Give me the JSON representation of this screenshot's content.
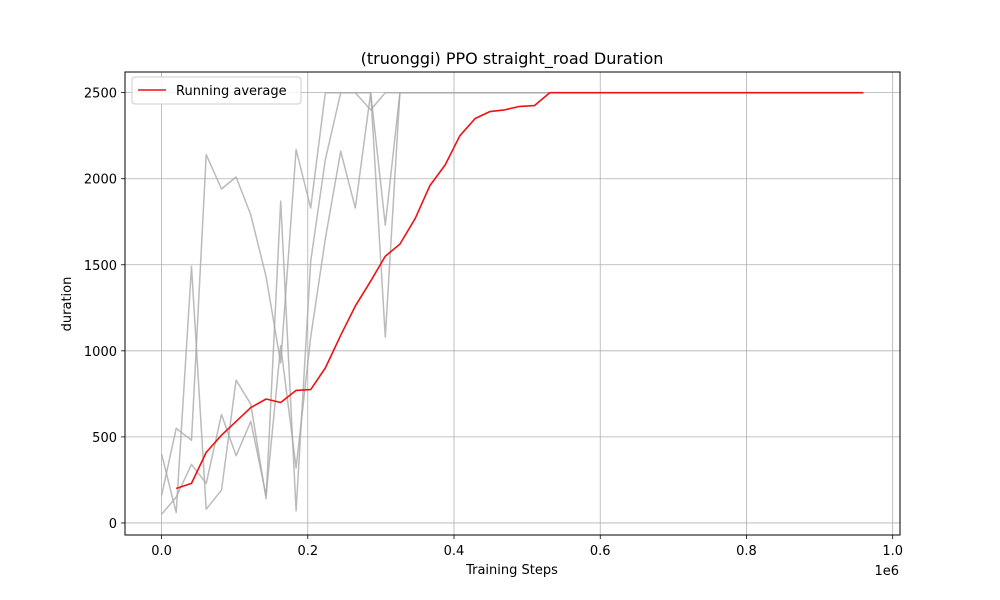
{
  "chart_data": {
    "type": "line",
    "title": "(truonggi) PPO straight_road Duration",
    "xlabel": "Training Steps",
    "ylabel": "duration",
    "x_offset_label": "1e6",
    "xlim": [
      -0.05,
      1.01
    ],
    "ylim": [
      -70,
      2620
    ],
    "x_ticks": [
      0.0,
      0.2,
      0.4,
      0.6,
      0.8,
      1.0
    ],
    "x_tick_labels": [
      "0.0",
      "0.2",
      "0.4",
      "0.6",
      "0.8",
      "1.0"
    ],
    "y_ticks": [
      0,
      500,
      1000,
      1500,
      2000,
      2500
    ],
    "y_tick_labels": [
      "0",
      "500",
      "1000",
      "1500",
      "2000",
      "2500"
    ],
    "grid": true,
    "legend": {
      "position": "top-left",
      "entries": [
        "Running average"
      ]
    },
    "colors": {
      "raw": "#aaaaaa",
      "average": "#ee1111"
    },
    "series": [
      {
        "x": [
          0.0,
          0.02,
          0.041,
          0.061,
          0.082,
          0.102,
          0.122,
          0.143,
          0.163,
          0.184,
          0.204,
          0.224,
          0.245,
          0.265,
          0.286,
          0.306,
          0.326,
          0.96
        ],
        "values": [
          160,
          550,
          480,
          2140,
          1940,
          2010,
          1790,
          1430,
          930,
          2170,
          1830,
          2500,
          2500,
          2500,
          2500,
          1080,
          2500,
          2500
        ]
      },
      {
        "x": [
          0.0,
          0.02,
          0.041,
          0.061,
          0.082,
          0.102,
          0.122,
          0.143,
          0.163,
          0.184,
          0.204,
          0.224,
          0.245,
          0.265,
          0.286,
          0.306,
          0.326,
          0.96
        ],
        "values": [
          400,
          60,
          1490,
          80,
          190,
          830,
          690,
          140,
          1870,
          70,
          1520,
          2110,
          2500,
          2500,
          2400,
          2500,
          2500,
          2500
        ]
      },
      {
        "x": [
          0.0,
          0.02,
          0.041,
          0.061,
          0.082,
          0.102,
          0.122,
          0.143,
          0.163,
          0.184,
          0.204,
          0.224,
          0.245,
          0.265,
          0.286,
          0.306,
          0.326,
          0.96
        ],
        "values": [
          50,
          150,
          340,
          230,
          630,
          390,
          590,
          160,
          1030,
          320,
          1080,
          1650,
          2160,
          1830,
          2500,
          1730,
          2500,
          2500
        ]
      },
      {
        "name": "Running average",
        "x": [
          0.02,
          0.041,
          0.061,
          0.082,
          0.102,
          0.122,
          0.143,
          0.163,
          0.184,
          0.204,
          0.224,
          0.245,
          0.265,
          0.286,
          0.306,
          0.326,
          0.347,
          0.367,
          0.388,
          0.408,
          0.429,
          0.449,
          0.469,
          0.49,
          0.51,
          0.531,
          0.551,
          0.96
        ],
        "values": [
          200,
          230,
          410,
          510,
          590,
          670,
          720,
          700,
          770,
          775,
          900,
          1090,
          1260,
          1405,
          1550,
          1620,
          1770,
          1960,
          2080,
          2250,
          2350,
          2390,
          2400,
          2420,
          2425,
          2500,
          2500,
          2500
        ]
      }
    ]
  }
}
